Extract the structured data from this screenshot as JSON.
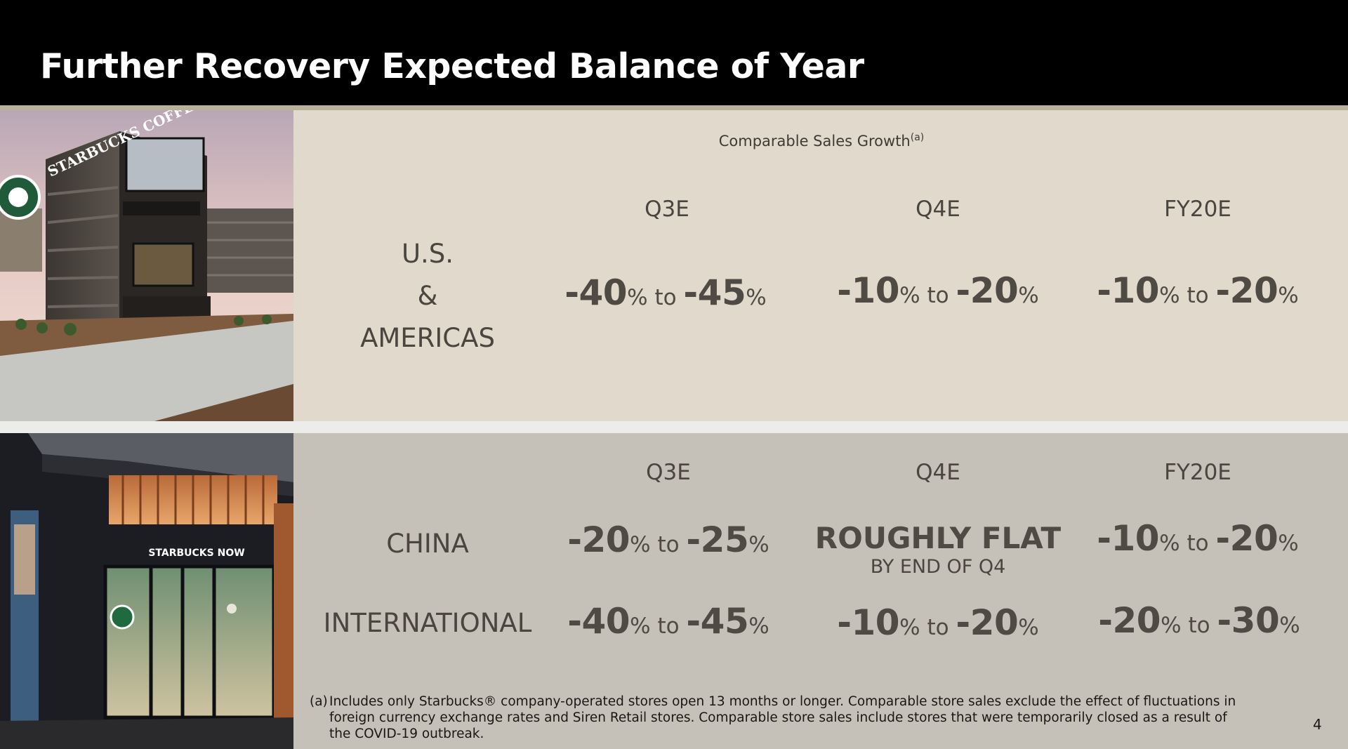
{
  "slide": {
    "title": "Further Recovery Expected Balance of Year",
    "page_number": "4"
  },
  "top_section": {
    "heading": "Comparable Sales Growth",
    "heading_sup": "(a)",
    "columns": [
      "Q3E",
      "Q4E",
      "FY20E"
    ],
    "region_lines": [
      "U.S.",
      "&",
      "AMERICAS"
    ],
    "values": [
      {
        "low": "-40",
        "high": "-45"
      },
      {
        "low": "-10",
        "high": "-20"
      },
      {
        "low": "-10",
        "high": "-20"
      }
    ]
  },
  "bottom_section": {
    "columns": [
      "Q3E",
      "Q4E",
      "FY20E"
    ],
    "rows": [
      {
        "region": "CHINA",
        "q3e": {
          "low": "-20",
          "high": "-25"
        },
        "q4e_main": "ROUGHLY FLAT",
        "q4e_sub": "BY END OF Q4",
        "fy20e": {
          "low": "-10",
          "high": "-20"
        }
      },
      {
        "region": "INTERNATIONAL",
        "q3e": {
          "low": "-40",
          "high": "-45"
        },
        "q4e": {
          "low": "-10",
          "high": "-20"
        },
        "fy20e": {
          "low": "-20",
          "high": "-30"
        }
      }
    ]
  },
  "units": {
    "percent": "%",
    "to": "to"
  },
  "photo_top": {
    "sign_text": "STARBUCKS COFFEE"
  },
  "photo_bot": {
    "sign_text": "STARBUCKS NOW"
  },
  "footnote": {
    "label": "(a)",
    "text": "Includes only Starbucks® company-operated stores open 13 months or longer. Comparable store sales exclude the effect of fluctuations in foreign currency exchange rates and Siren Retail stores. Comparable store sales include stores that were temporarily closed as a result of the COVID-19 outbreak."
  },
  "colors": {
    "header_bg": "#000000",
    "accent_rule": "#b9b29a",
    "top_panel": "#e0d9cc",
    "bottom_panel": "#c6c1b8",
    "value_text": "#4f4a43"
  }
}
